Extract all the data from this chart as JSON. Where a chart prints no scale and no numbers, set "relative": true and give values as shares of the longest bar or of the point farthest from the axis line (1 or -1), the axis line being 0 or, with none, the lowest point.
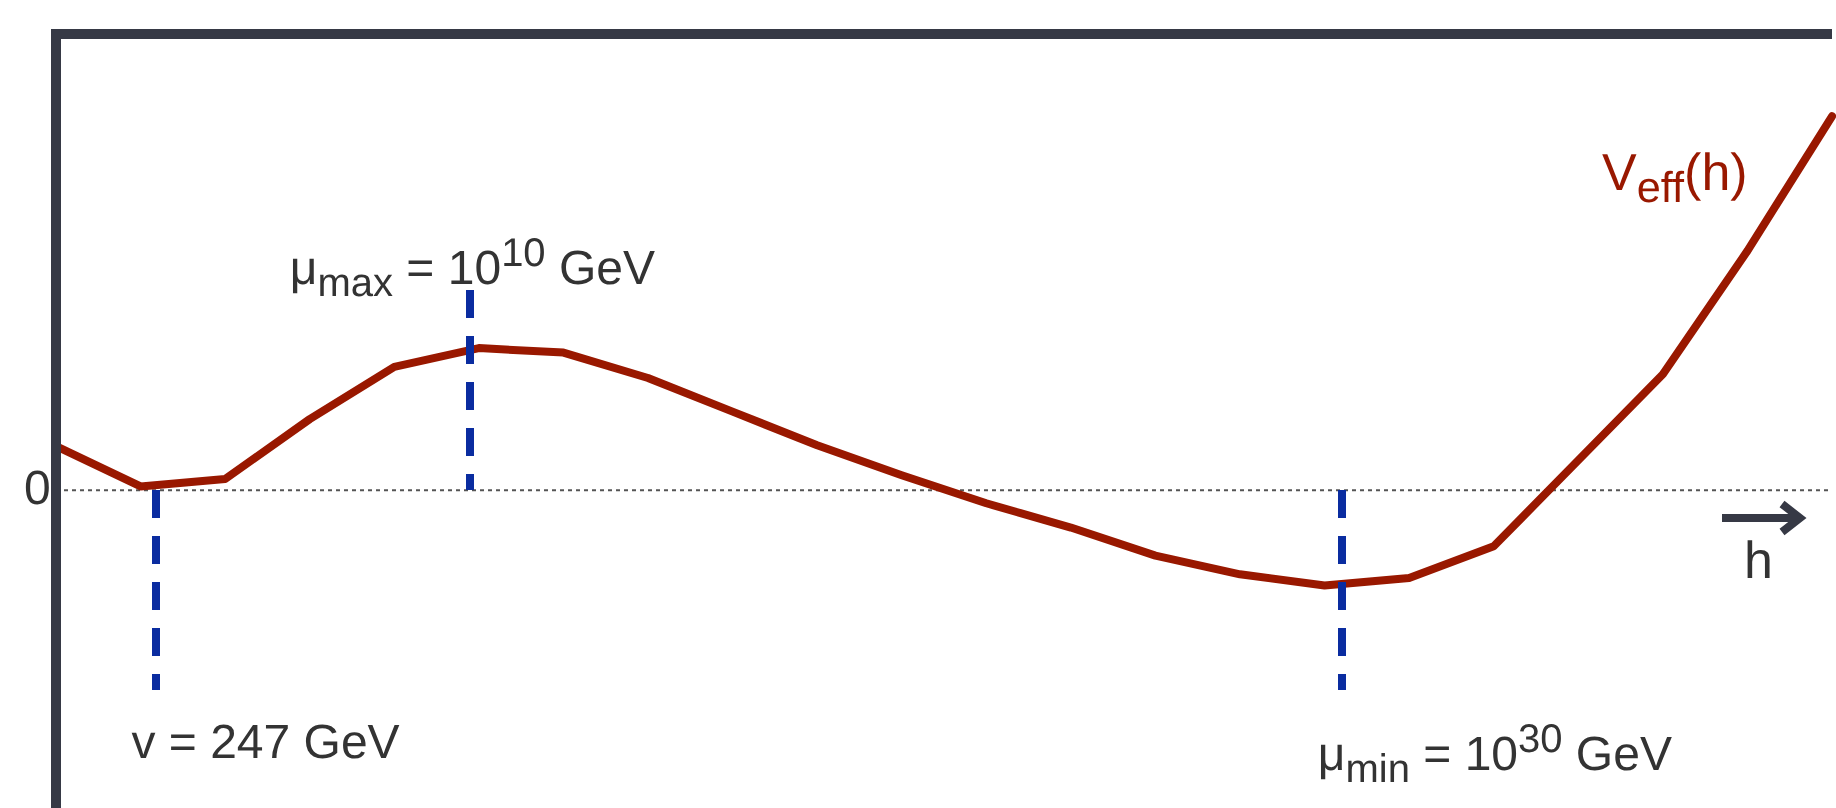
{
  "chart_data": {
    "type": "line",
    "relative": true,
    "xlabel": "h",
    "legend": false,
    "marker": "none",
    "line_style": "solid",
    "categories": [
      null,
      null,
      null,
      null,
      null,
      null,
      null,
      null,
      null,
      null,
      null,
      null,
      null,
      null,
      null,
      null,
      null,
      null,
      null,
      null,
      null,
      null
    ],
    "series": [
      {
        "name": "V$_{eff}$(h)",
        "color": "#991800",
        "values": [
          0.118,
          0.01,
          0.03,
          0.19,
          0.33,
          0.38,
          0.368,
          0.3,
          0.21,
          0.12,
          0.04,
          -0.035,
          -0.1,
          -0.175,
          -0.225,
          -0.255,
          -0.235,
          -0.15,
          0.08,
          0.31,
          0.64,
          1
        ]
      }
    ],
    "ref_lines": [
      {
        "axis": "y",
        "value": 0,
        "line_style": "dotted",
        "color": "#555555"
      }
    ],
    "annotations": [
      "0",
      "v = 247 GeV",
      "μ$_{max}$ = 10$^{10}$ GeV",
      "μ$_{min}$ = 10$^{30}$ GeV"
    ]
  }
}
